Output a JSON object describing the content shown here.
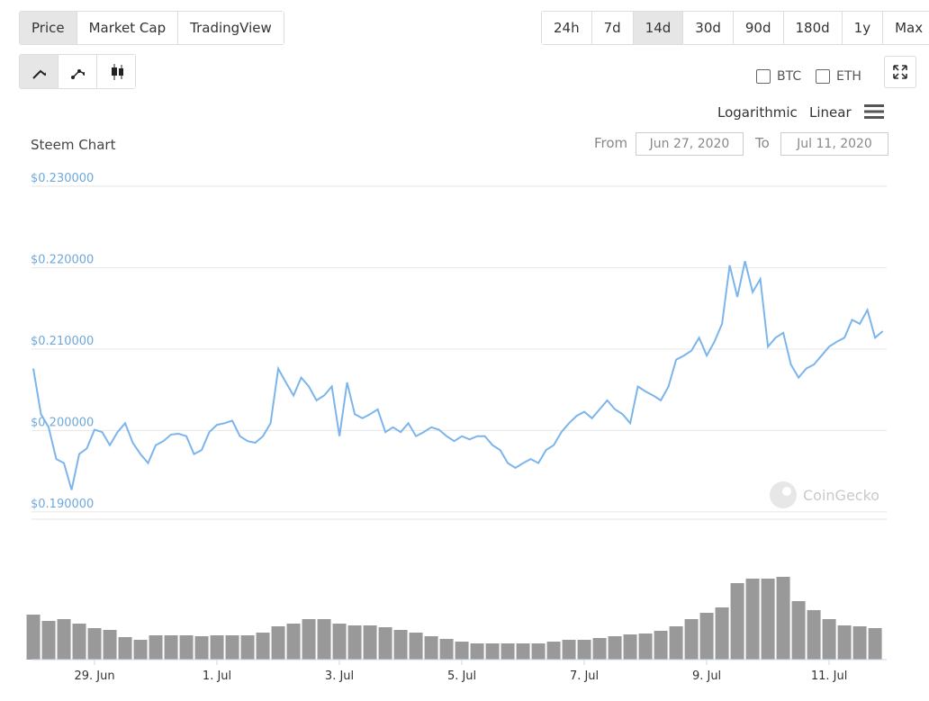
{
  "toolbar": {
    "tabs": [
      "Price",
      "Market Cap",
      "TradingView"
    ],
    "active_tab": 0,
    "ranges": [
      "24h",
      "7d",
      "14d",
      "30d",
      "90d",
      "180d",
      "1y",
      "Max"
    ],
    "active_range": 2,
    "compare": [
      "BTC",
      "ETH"
    ],
    "scales": [
      "Logarithmic",
      "Linear"
    ]
  },
  "date_range": {
    "from_label": "From",
    "from": "Jun 27, 2020",
    "to_label": "To",
    "to": "Jul 11, 2020"
  },
  "chart_data": {
    "type": "line",
    "title": "Steem Chart",
    "watermark": "CoinGecko",
    "color": "#7cb5ec",
    "grid": true,
    "ylim": [
      0.1891,
      0.23
    ],
    "yticks": [
      {
        "value": 0.23,
        "label": "$0.230000"
      },
      {
        "value": 0.22,
        "label": "$0.220000"
      },
      {
        "value": 0.21,
        "label": "$0.210000"
      },
      {
        "value": 0.2,
        "label": "$0.200000"
      },
      {
        "value": 0.19,
        "label": "$0.190000"
      }
    ],
    "xlim": [
      27.97,
      41.94
    ],
    "xticks": [
      {
        "value": 29,
        "label": "29. Jun"
      },
      {
        "value": 31,
        "label": "1. Jul"
      },
      {
        "value": 33,
        "label": "3. Jul"
      },
      {
        "value": 35,
        "label": "5. Jul"
      },
      {
        "value": 37,
        "label": "7. Jul"
      },
      {
        "value": 39,
        "label": "9. Jul"
      },
      {
        "value": 41,
        "label": "11. Jul"
      }
    ],
    "x": [
      28,
      28.125,
      28.25,
      28.375,
      28.5,
      28.625,
      28.75,
      28.875,
      29,
      29.125,
      29.25,
      29.375,
      29.5,
      29.625,
      29.75,
      29.875,
      30,
      30.125,
      30.25,
      30.375,
      30.5,
      30.625,
      30.75,
      30.875,
      31,
      31.125,
      31.25,
      31.375,
      31.5,
      31.625,
      31.75,
      31.875,
      32,
      32.125,
      32.25,
      32.375,
      32.5,
      32.625,
      32.75,
      32.875,
      33,
      33.125,
      33.25,
      33.375,
      33.5,
      33.625,
      33.75,
      33.875,
      34,
      34.125,
      34.25,
      34.375,
      34.5,
      34.625,
      34.75,
      34.875,
      35,
      35.125,
      35.25,
      35.375,
      35.5,
      35.625,
      35.75,
      35.875,
      36,
      36.125,
      36.25,
      36.375,
      36.5,
      36.625,
      36.75,
      36.875,
      37,
      37.125,
      37.25,
      37.375,
      37.5,
      37.625,
      37.75,
      37.875,
      38,
      38.125,
      38.25,
      38.375,
      38.5,
      38.625,
      38.75,
      38.875,
      39,
      39.125,
      39.25,
      39.375,
      39.5,
      39.625,
      39.75,
      39.875,
      40,
      40.125,
      40.25,
      40.375,
      40.5,
      40.625,
      40.75,
      40.875,
      41,
      41.125,
      41.25,
      41.375,
      41.5,
      41.625,
      41.75,
      41.875
    ],
    "values": [
      0.2076,
      0.202,
      0.2004,
      0.1965,
      0.196,
      0.1927,
      0.1971,
      0.1978,
      0.2001,
      0.1998,
      0.1982,
      0.1998,
      0.2009,
      0.1985,
      0.1971,
      0.196,
      0.1982,
      0.1987,
      0.1995,
      0.1996,
      0.1993,
      0.1971,
      0.1976,
      0.1998,
      0.2007,
      0.2009,
      0.2012,
      0.1993,
      0.1987,
      0.1985,
      0.1993,
      0.2009,
      0.2076,
      0.2059,
      0.2043,
      0.2065,
      0.2054,
      0.2037,
      0.2043,
      0.2054,
      0.1993,
      0.2059,
      0.202,
      0.2015,
      0.202,
      0.2026,
      0.1998,
      0.2004,
      0.1998,
      0.2009,
      0.1993,
      0.1998,
      0.2004,
      0.2001,
      0.1993,
      0.1987,
      0.1993,
      0.1989,
      0.1993,
      0.1993,
      0.1982,
      0.1976,
      0.196,
      0.1954,
      0.196,
      0.1965,
      0.196,
      0.1976,
      0.1982,
      0.1998,
      0.2009,
      0.2018,
      0.2023,
      0.2015,
      0.2026,
      0.2037,
      0.2026,
      0.202,
      0.2009,
      0.2054,
      0.2048,
      0.2043,
      0.2037,
      0.2054,
      0.2087,
      0.2092,
      0.2098,
      0.2114,
      0.2092,
      0.2109,
      0.2131,
      0.2203,
      0.2164,
      0.2208,
      0.217,
      0.2186,
      0.2103,
      0.2114,
      0.212,
      0.2081,
      0.2065,
      0.2076,
      0.2081,
      0.2092,
      0.2103,
      0.2109,
      0.2114,
      0.2136,
      0.2131,
      0.2148,
      0.2114,
      0.2122
    ],
    "volume": {
      "color": "#999999",
      "ylim": [
        0,
        100
      ],
      "x": [
        28,
        28.25,
        28.5,
        28.75,
        29,
        29.25,
        29.5,
        29.75,
        30,
        30.25,
        30.5,
        30.75,
        31,
        31.25,
        31.5,
        31.75,
        32,
        32.25,
        32.5,
        32.75,
        33,
        33.25,
        33.5,
        33.75,
        34,
        34.25,
        34.5,
        34.75,
        35,
        35.25,
        35.5,
        35.75,
        36,
        36.25,
        36.5,
        36.75,
        37,
        37.25,
        37.5,
        37.75,
        38,
        38.25,
        38.5,
        38.75,
        39,
        39.25,
        39.5,
        39.75,
        40,
        40.25,
        40.5,
        40.75,
        41,
        41.25,
        41.5,
        41.75
      ],
      "values": [
        50,
        43,
        45,
        40,
        35,
        33,
        25,
        22,
        27,
        27,
        27,
        26,
        27,
        27,
        27,
        30,
        37,
        40,
        45,
        45,
        40,
        38,
        38,
        36,
        33,
        30,
        26,
        23,
        20,
        18,
        18,
        18,
        18,
        18,
        20,
        22,
        22,
        24,
        26,
        28,
        29,
        32,
        37,
        45,
        52,
        58,
        85,
        90,
        90,
        92,
        65,
        55,
        45,
        38,
        37,
        35
      ]
    }
  }
}
